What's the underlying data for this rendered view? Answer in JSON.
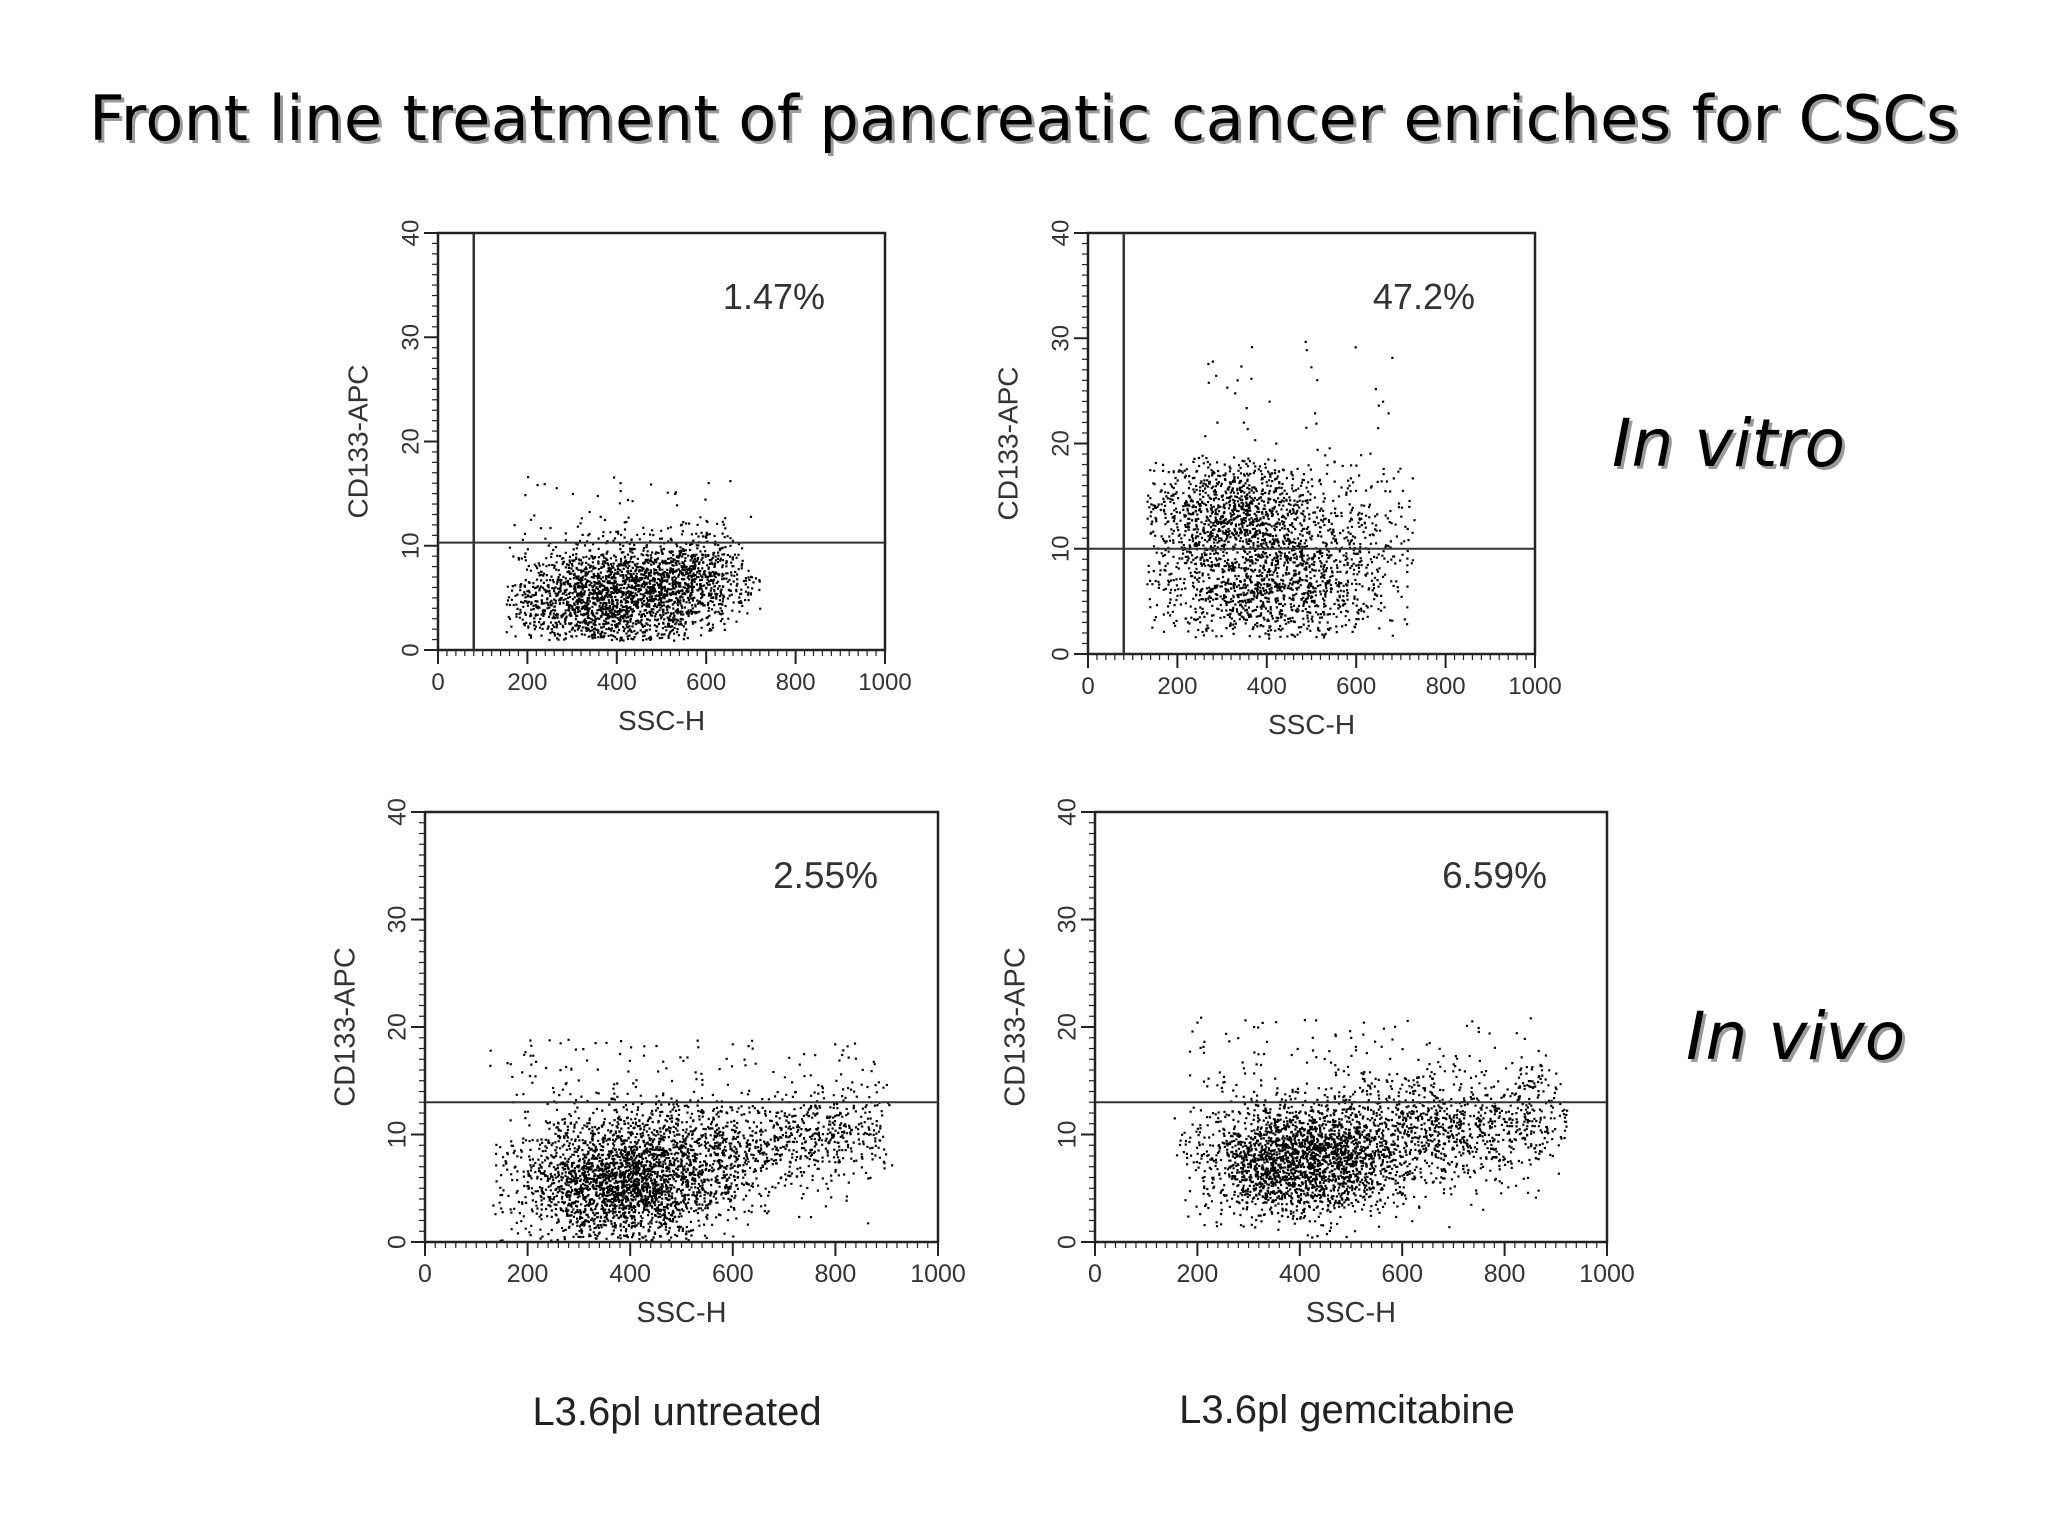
{
  "title": "Front line treatment of pancreatic cancer enriches for CSCs",
  "row_labels": {
    "in_vitro": "In vitro",
    "in_vivo": "In vivo"
  },
  "condition_labels": {
    "untreated": "L3.6pl untreated",
    "gemcitabine": "L3.6pl gemcitabine"
  },
  "chart_data": [
    {
      "type": "scatter",
      "row": "In vitro",
      "xlabel": "SSC-H",
      "ylabel": "CD133-APC",
      "xlim": [
        0,
        1000
      ],
      "ylim": [
        0,
        40
      ],
      "xticks": [
        "0",
        "200",
        "400",
        "600",
        "800",
        "1000"
      ],
      "yticks": [
        "0",
        "10",
        "20",
        "30",
        "40"
      ],
      "annotation": "1.47%",
      "gate_x": 80,
      "gate_y": 10.3,
      "clusters": [
        {
          "cx": 380,
          "cy": 5.0,
          "sx": 110,
          "sy": 2.6,
          "n": 1900,
          "xmin": 150,
          "xmax": 720,
          "ymin": 1.0,
          "ymax": 13
        },
        {
          "cx": 560,
          "cy": 7.0,
          "sx": 80,
          "sy": 2.2,
          "n": 700,
          "xmin": 150,
          "xmax": 720,
          "ymin": 1.0,
          "ymax": 13
        }
      ],
      "sparse": {
        "n": 45,
        "xmin": 180,
        "xmax": 700,
        "ymin": 10.5,
        "ymax": 17
      }
    },
    {
      "type": "scatter",
      "row": "In vitro",
      "xlabel": "SSC-H",
      "ylabel": "CD133-APC",
      "xlim": [
        0,
        1000
      ],
      "ylim": [
        0,
        40
      ],
      "xticks": [
        "0",
        "200",
        "400",
        "600",
        "800",
        "1000"
      ],
      "yticks": [
        "0",
        "10",
        "20",
        "30",
        "40"
      ],
      "annotation": "47.2%",
      "gate_x": 80,
      "gate_y": 10,
      "clusters": [
        {
          "cx": 310,
          "cy": 13.5,
          "sx": 110,
          "sy": 2.6,
          "n": 1100,
          "xmin": 130,
          "xmax": 730,
          "ymin": 3,
          "ymax": 19
        },
        {
          "cx": 380,
          "cy": 6.5,
          "sx": 120,
          "sy": 2.8,
          "n": 1100,
          "xmin": 130,
          "xmax": 730,
          "ymin": 1.5,
          "ymax": 12
        },
        {
          "cx": 560,
          "cy": 10.0,
          "sx": 110,
          "sy": 4.0,
          "n": 450,
          "xmin": 130,
          "xmax": 730,
          "ymin": 2,
          "ymax": 19
        }
      ],
      "sparse": {
        "n": 40,
        "xmin": 250,
        "xmax": 680,
        "ymin": 18,
        "ymax": 30
      }
    },
    {
      "type": "scatter",
      "row": "In vivo",
      "condition": "L3.6pl untreated",
      "xlabel": "SSC-H",
      "ylabel": "CD133-APC",
      "xlim": [
        0,
        1000
      ],
      "ylim": [
        0,
        40
      ],
      "xticks": [
        "0",
        "200",
        "400",
        "600",
        "800",
        "1000"
      ],
      "yticks": [
        "0",
        "10",
        "20",
        "30",
        "40"
      ],
      "annotation": "2.55%",
      "gate_x": null,
      "gate_y": 13,
      "clusters": [
        {
          "cx": 380,
          "cy": 5.5,
          "sx": 100,
          "sy": 3.0,
          "n": 2400,
          "xmin": 130,
          "xmax": 910,
          "ymin": 0.2,
          "ymax": 14
        },
        {
          "cx": 580,
          "cy": 9.0,
          "sx": 130,
          "sy": 2.6,
          "n": 900,
          "xmin": 130,
          "xmax": 910,
          "ymin": 0.5,
          "ymax": 14
        },
        {
          "cx": 800,
          "cy": 10.5,
          "sx": 70,
          "sy": 2.0,
          "n": 250,
          "xmin": 130,
          "xmax": 910,
          "ymin": 2,
          "ymax": 15
        }
      ],
      "sparse": {
        "n": 130,
        "xmin": 120,
        "xmax": 880,
        "ymin": 13,
        "ymax": 19
      }
    },
    {
      "type": "scatter",
      "row": "In vivo",
      "condition": "L3.6pl gemcitabine",
      "xlabel": "SSC-H",
      "ylabel": "CD133-APC",
      "xlim": [
        0,
        1000
      ],
      "ylim": [
        0,
        40
      ],
      "xticks": [
        "0",
        "200",
        "400",
        "600",
        "800",
        "1000"
      ],
      "yticks": [
        "0",
        "10",
        "20",
        "30",
        "40"
      ],
      "annotation": "6.59%",
      "gate_x": null,
      "gate_y": 13,
      "clusters": [
        {
          "cx": 400,
          "cy": 7.5,
          "sx": 100,
          "sy": 2.6,
          "n": 2200,
          "xmin": 150,
          "xmax": 920,
          "ymin": 0.5,
          "ymax": 16
        },
        {
          "cx": 620,
          "cy": 10.5,
          "sx": 130,
          "sy": 2.6,
          "n": 900,
          "xmin": 150,
          "xmax": 920,
          "ymin": 2,
          "ymax": 16
        },
        {
          "cx": 820,
          "cy": 11.5,
          "sx": 70,
          "sy": 2.6,
          "n": 250,
          "xmin": 150,
          "xmax": 920,
          "ymin": 4,
          "ymax": 17
        }
      ],
      "sparse": {
        "n": 140,
        "xmin": 180,
        "xmax": 880,
        "ymin": 14,
        "ymax": 21
      }
    }
  ]
}
